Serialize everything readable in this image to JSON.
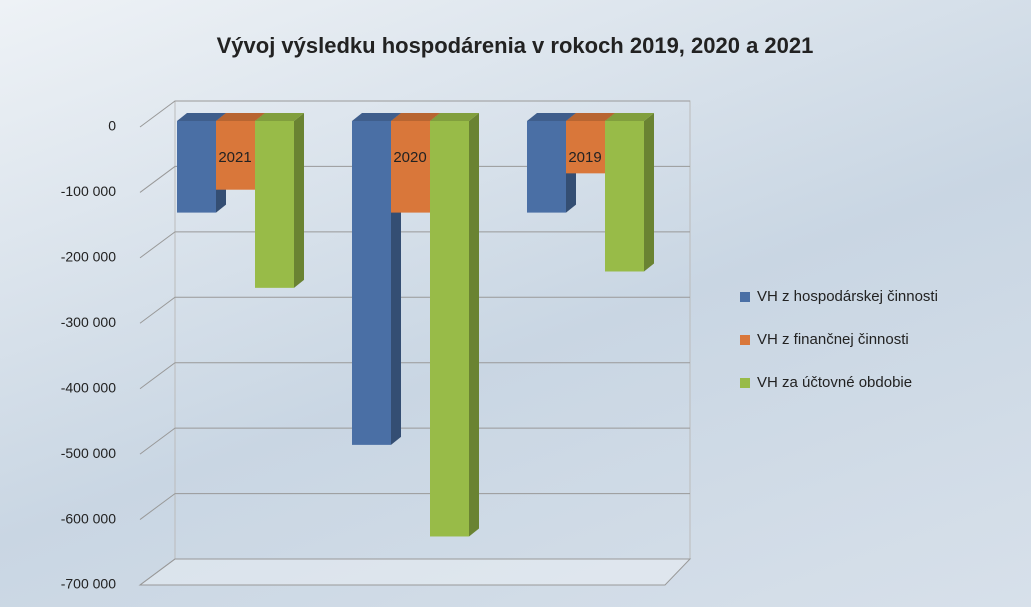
{
  "chart_data": {
    "type": "bar",
    "title": "Vývoj výsledku hospodárenia v rokoch 2019, 2020 a 2021",
    "categories": [
      "2021",
      "2020",
      "2019"
    ],
    "series": [
      {
        "name": "VH z hospodárskej činnosti",
        "color": "#4a6fa5",
        "values": [
          -140000,
          -495000,
          -140000
        ]
      },
      {
        "name": "VH z finančnej činnosti",
        "color": "#d9773a",
        "values": [
          -105000,
          -140000,
          -80000
        ]
      },
      {
        "name": "VH za účtovné obdobie",
        "color": "#98bb48",
        "values": [
          -255000,
          -635000,
          -230000
        ]
      }
    ],
    "ylim": [
      -700000,
      0
    ],
    "yticks": [
      {
        "value": 0,
        "label": "0"
      },
      {
        "value": -100000,
        "label": "-100 000"
      },
      {
        "value": -200000,
        "label": "-200 000"
      },
      {
        "value": -300000,
        "label": "-300 000"
      },
      {
        "value": -400000,
        "label": "-400 000"
      },
      {
        "value": -500000,
        "label": "-500 000"
      },
      {
        "value": -600000,
        "label": "-600 000"
      },
      {
        "value": -700000,
        "label": "-700 000"
      }
    ],
    "grid": true,
    "legend": "right"
  }
}
